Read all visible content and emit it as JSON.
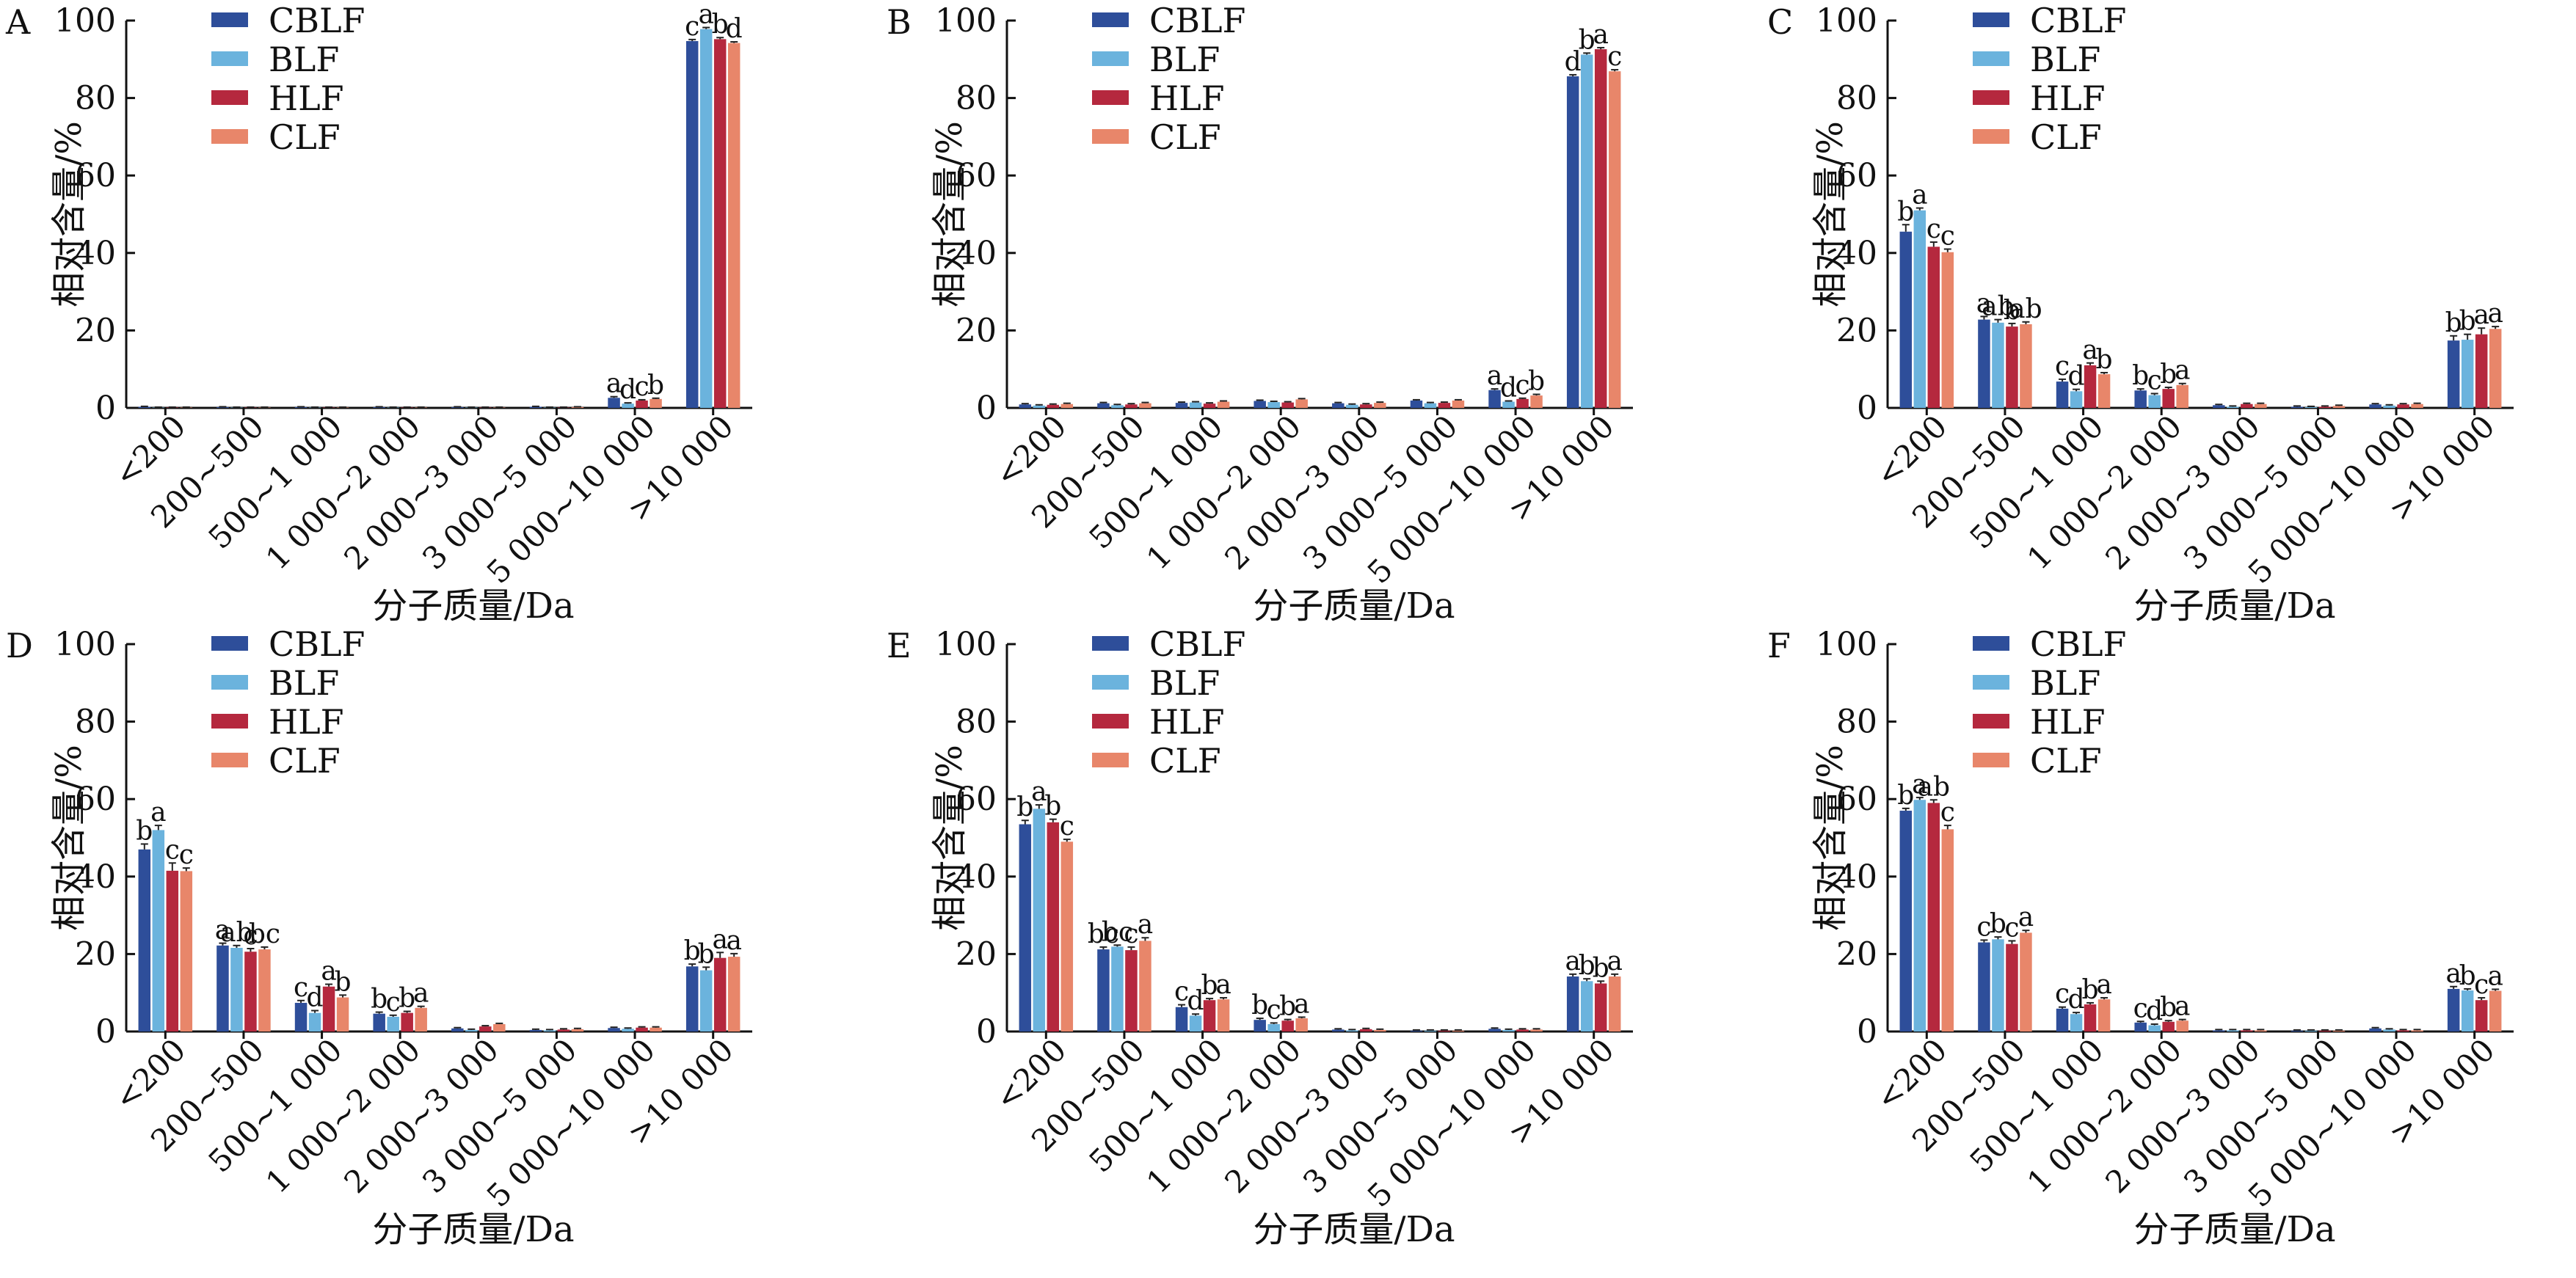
{
  "chart_data": [
    {
      "type": "bar",
      "panel": "A",
      "xlabel": "分子质量/Da",
      "ylabel": "相对含量/%",
      "ylim": [
        0,
        100
      ],
      "yticks": [
        0,
        20,
        40,
        60,
        80,
        100
      ],
      "categories": [
        "<200",
        "200~500",
        "500~1 000",
        "1 000~2 000",
        "2 000~3 000",
        "3 000~5 000",
        "5 000~10 000",
        ">10 000"
      ],
      "legend": "top-left",
      "colors": [
        "#2e4e9a",
        "#6bb3dd",
        "#b5283e",
        "#e8866a"
      ],
      "series": [
        {
          "name": "CBLF",
          "values": [
            0.3,
            0.2,
            0.2,
            0.2,
            0.2,
            0.3,
            2.6,
            94.7
          ],
          "errors": [
            0.1,
            0.1,
            0.1,
            0.1,
            0.1,
            0.1,
            0.3,
            0.4
          ],
          "labels": [
            "",
            "",
            "",
            "",
            "",
            "",
            "a",
            "c"
          ]
        },
        {
          "name": "BLF",
          "values": [
            0.1,
            0.1,
            0.1,
            0.1,
            0.1,
            0.1,
            1.1,
            97.8
          ],
          "errors": [
            0.1,
            0.1,
            0.1,
            0.1,
            0.1,
            0.1,
            0.2,
            0.4
          ],
          "labels": [
            "",
            "",
            "",
            "",
            "",
            "",
            "d",
            "a"
          ]
        },
        {
          "name": "HLF",
          "values": [
            0.1,
            0.1,
            0.1,
            0.1,
            0.1,
            0.1,
            1.9,
            95.2
          ],
          "errors": [
            0.1,
            0.1,
            0.1,
            0.1,
            0.1,
            0.1,
            0.2,
            0.4
          ],
          "labels": [
            "",
            "",
            "",
            "",
            "",
            "",
            "c",
            "b"
          ]
        },
        {
          "name": "CLF",
          "values": [
            0.1,
            0.1,
            0.1,
            0.1,
            0.1,
            0.2,
            2.3,
            94.2
          ],
          "errors": [
            0.1,
            0.1,
            0.1,
            0.1,
            0.1,
            0.1,
            0.2,
            0.3
          ],
          "labels": [
            "",
            "",
            "",
            "",
            "",
            "",
            "b",
            "d"
          ]
        }
      ]
    },
    {
      "type": "bar",
      "panel": "B",
      "xlabel": "分子质量/Da",
      "ylabel": "相对含量/%",
      "ylim": [
        0,
        100
      ],
      "yticks": [
        0,
        20,
        40,
        60,
        80,
        100
      ],
      "categories": [
        "<200",
        "200~500",
        "500~1 000",
        "1 000~2 000",
        "2 000~3 000",
        "3 000~5 000",
        "5 000~10 000",
        ">10 000"
      ],
      "legend": "top-left",
      "colors": [
        "#2e4e9a",
        "#6bb3dd",
        "#b5283e",
        "#e8866a"
      ],
      "series": [
        {
          "name": "CBLF",
          "values": [
            0.9,
            1.2,
            1.3,
            1.8,
            1.2,
            1.9,
            4.6,
            85.6
          ],
          "errors": [
            0.2,
            0.2,
            0.2,
            0.2,
            0.2,
            0.2,
            0.3,
            0.4
          ],
          "labels": [
            "",
            "",
            "",
            "",
            "",
            "",
            "a",
            "d"
          ]
        },
        {
          "name": "BLF",
          "values": [
            0.6,
            0.7,
            1.4,
            1.5,
            0.8,
            1.2,
            1.6,
            91.2
          ],
          "errors": [
            0.2,
            0.2,
            0.2,
            0.2,
            0.2,
            0.2,
            0.2,
            0.4
          ],
          "labels": [
            "",
            "",
            "",
            "",
            "",
            "",
            "d",
            "b"
          ]
        },
        {
          "name": "HLF",
          "values": [
            0.8,
            0.9,
            1.1,
            1.4,
            0.9,
            1.3,
            2.3,
            92.6
          ],
          "errors": [
            0.2,
            0.2,
            0.2,
            0.2,
            0.2,
            0.2,
            0.2,
            0.4
          ],
          "labels": [
            "",
            "",
            "",
            "",
            "",
            "",
            "c",
            "a"
          ]
        },
        {
          "name": "CLF",
          "values": [
            1.0,
            1.2,
            1.6,
            2.2,
            1.3,
            1.9,
            3.2,
            86.9
          ],
          "errors": [
            0.2,
            0.2,
            0.2,
            0.2,
            0.2,
            0.2,
            0.3,
            0.4
          ],
          "labels": [
            "",
            "",
            "",
            "",
            "",
            "",
            "b",
            "c"
          ]
        }
      ]
    },
    {
      "type": "bar",
      "panel": "C",
      "xlabel": "分子质量/Da",
      "ylabel": "相对含量/%",
      "ylim": [
        0,
        100
      ],
      "yticks": [
        0,
        20,
        40,
        60,
        80,
        100
      ],
      "categories": [
        "<200",
        "200~500",
        "500~1 000",
        "1 000~2 000",
        "2 000~3 000",
        "3 000~5 000",
        "5 000~10 000",
        ">10 000"
      ],
      "legend": "top-left",
      "colors": [
        "#2e4e9a",
        "#6bb3dd",
        "#b5283e",
        "#e8866a"
      ],
      "series": [
        {
          "name": "CBLF",
          "values": [
            45.5,
            22.8,
            6.8,
            4.5,
            0.7,
            0.3,
            0.9,
            17.4
          ],
          "errors": [
            1.8,
            0.8,
            0.6,
            0.4,
            0.2,
            0.2,
            0.2,
            1.2
          ],
          "labels": [
            "b",
            "a",
            "c",
            "b",
            "",
            "",
            "",
            "b"
          ]
        },
        {
          "name": "BLF",
          "values": [
            51.0,
            22.0,
            4.3,
            3.3,
            0.3,
            0.2,
            0.6,
            17.6
          ],
          "errors": [
            0.6,
            0.8,
            0.5,
            0.4,
            0.2,
            0.2,
            0.2,
            1.4
          ],
          "labels": [
            "a",
            "ab",
            "d",
            "c",
            "",
            "",
            "",
            "b"
          ]
        },
        {
          "name": "HLF",
          "values": [
            41.6,
            21.0,
            11.0,
            4.9,
            1.0,
            0.3,
            0.9,
            19.0
          ],
          "errors": [
            1.2,
            0.8,
            0.6,
            0.4,
            0.2,
            0.2,
            0.2,
            1.6
          ],
          "labels": [
            "c",
            "b",
            "a",
            "b",
            "",
            "",
            "",
            "a"
          ]
        },
        {
          "name": "CLF",
          "values": [
            40.2,
            21.6,
            8.7,
            5.9,
            1.0,
            0.5,
            1.0,
            20.4
          ],
          "errors": [
            0.8,
            0.6,
            0.4,
            0.4,
            0.2,
            0.2,
            0.2,
            0.6
          ],
          "labels": [
            "c",
            "ab",
            "b",
            "a",
            "",
            "",
            "",
            "a"
          ]
        }
      ]
    },
    {
      "type": "bar",
      "panel": "D",
      "xlabel": "分子质量/Da",
      "ylabel": "相对含量/%",
      "ylim": [
        0,
        100
      ],
      "yticks": [
        0,
        20,
        40,
        60,
        80,
        100
      ],
      "categories": [
        "<200",
        "200~500",
        "500~1 000",
        "1 000~2 000",
        "2 000~3 000",
        "3 000~5 000",
        "5 000~10 000",
        ">10 000"
      ],
      "legend": "top-left",
      "colors": [
        "#2e4e9a",
        "#6bb3dd",
        "#b5283e",
        "#e8866a"
      ],
      "series": [
        {
          "name": "CBLF",
          "values": [
            47.0,
            22.2,
            7.4,
            4.6,
            0.8,
            0.4,
            0.9,
            16.8
          ],
          "errors": [
            1.4,
            0.6,
            0.6,
            0.4,
            0.2,
            0.2,
            0.2,
            0.6
          ],
          "labels": [
            "b",
            "a",
            "c",
            "b",
            "",
            "",
            "",
            "b"
          ]
        },
        {
          "name": "BLF",
          "values": [
            52.0,
            21.6,
            4.8,
            3.8,
            0.4,
            0.3,
            0.7,
            15.8
          ],
          "errors": [
            1.2,
            0.6,
            0.6,
            0.4,
            0.2,
            0.2,
            0.2,
            0.8
          ],
          "labels": [
            "a",
            "ab",
            "d",
            "c",
            "",
            "",
            "",
            "b"
          ]
        },
        {
          "name": "HLF",
          "values": [
            41.5,
            20.6,
            11.6,
            4.8,
            1.3,
            0.5,
            1.0,
            19.0
          ],
          "errors": [
            2.0,
            0.8,
            0.6,
            0.4,
            0.2,
            0.2,
            0.2,
            1.4
          ],
          "labels": [
            "c",
            "c",
            "a",
            "b",
            "",
            "",
            "",
            "a"
          ]
        },
        {
          "name": "CLF",
          "values": [
            41.4,
            21.2,
            8.8,
            6.1,
            1.9,
            0.6,
            1.0,
            19.3
          ],
          "errors": [
            0.8,
            0.6,
            0.6,
            0.4,
            0.2,
            0.2,
            0.2,
            0.8
          ],
          "labels": [
            "c",
            "bc",
            "b",
            "a",
            "",
            "",
            "",
            "a"
          ]
        }
      ]
    },
    {
      "type": "bar",
      "panel": "E",
      "xlabel": "分子质量/Da",
      "ylabel": "相对含量/%",
      "ylim": [
        0,
        100
      ],
      "yticks": [
        0,
        20,
        40,
        60,
        80,
        100
      ],
      "categories": [
        "<200",
        "200~500",
        "500~1 000",
        "1 000~2 000",
        "2 000~3 000",
        "3 000~5 000",
        "5 000~10 000",
        ">10 000"
      ],
      "legend": "top-left",
      "colors": [
        "#2e4e9a",
        "#6bb3dd",
        "#b5283e",
        "#e8866a"
      ],
      "series": [
        {
          "name": "CBLF",
          "values": [
            53.5,
            21.2,
            6.3,
            3.0,
            0.5,
            0.2,
            0.7,
            14.2
          ],
          "errors": [
            1.0,
            0.6,
            0.6,
            0.4,
            0.2,
            0.2,
            0.2,
            0.6
          ],
          "labels": [
            "b",
            "bc",
            "c",
            "b",
            "",
            "",
            "",
            "a"
          ]
        },
        {
          "name": "BLF",
          "values": [
            57.5,
            21.9,
            4.1,
            1.9,
            0.3,
            0.2,
            0.4,
            13.0
          ],
          "errors": [
            1.0,
            0.4,
            0.4,
            0.3,
            0.2,
            0.2,
            0.2,
            0.6
          ],
          "labels": [
            "a",
            "bc",
            "d",
            "c",
            "",
            "",
            "",
            "b"
          ]
        },
        {
          "name": "HLF",
          "values": [
            54.0,
            21.0,
            8.1,
            2.8,
            0.6,
            0.2,
            0.5,
            12.4
          ],
          "errors": [
            0.8,
            0.8,
            0.4,
            0.3,
            0.2,
            0.2,
            0.2,
            0.6
          ],
          "labels": [
            "b",
            "c",
            "b",
            "b",
            "",
            "",
            "",
            "b"
          ]
        },
        {
          "name": "CLF",
          "values": [
            49.0,
            23.4,
            8.3,
            3.4,
            0.4,
            0.2,
            0.5,
            14.2
          ],
          "errors": [
            0.6,
            0.8,
            0.4,
            0.3,
            0.2,
            0.2,
            0.2,
            0.6
          ],
          "labels": [
            "c",
            "a",
            "a",
            "a",
            "",
            "",
            "",
            "a"
          ]
        }
      ]
    },
    {
      "type": "bar",
      "panel": "F",
      "xlabel": "分子质量/Da",
      "ylabel": "相对含量/%",
      "ylim": [
        0,
        100
      ],
      "yticks": [
        0,
        20,
        40,
        60,
        80,
        100
      ],
      "categories": [
        "<200",
        "200~500",
        "500~1 000",
        "1 000~2 000",
        "2 000~3 000",
        "3 000~5 000",
        "5 000~10 000",
        ">10 000"
      ],
      "legend": "top-left",
      "colors": [
        "#2e4e9a",
        "#6bb3dd",
        "#b5283e",
        "#e8866a"
      ],
      "series": [
        {
          "name": "CBLF",
          "values": [
            57.0,
            23.0,
            5.9,
            2.3,
            0.3,
            0.2,
            0.8,
            11.0
          ],
          "errors": [
            0.6,
            0.6,
            0.4,
            0.3,
            0.2,
            0.2,
            0.2,
            0.6
          ],
          "labels": [
            "b",
            "c",
            "c",
            "c",
            "",
            "",
            "",
            "a"
          ]
        },
        {
          "name": "BLF",
          "values": [
            59.8,
            23.8,
            4.5,
            1.6,
            0.3,
            0.2,
            0.5,
            10.6
          ],
          "errors": [
            0.6,
            0.6,
            0.4,
            0.3,
            0.2,
            0.2,
            0.2,
            0.4
          ],
          "labels": [
            "a",
            "b",
            "d",
            "d",
            "",
            "",
            "",
            "b"
          ]
        },
        {
          "name": "HLF",
          "values": [
            59.0,
            22.6,
            7.0,
            2.5,
            0.3,
            0.2,
            0.3,
            8.1
          ],
          "errors": [
            0.8,
            0.8,
            0.4,
            0.3,
            0.2,
            0.2,
            0.2,
            0.6
          ],
          "labels": [
            "ab",
            "c",
            "b",
            "b",
            "",
            "",
            "",
            "c"
          ]
        },
        {
          "name": "CLF",
          "values": [
            52.2,
            25.5,
            8.3,
            2.8,
            0.3,
            0.2,
            0.3,
            10.5
          ],
          "errors": [
            1.0,
            0.6,
            0.4,
            0.3,
            0.2,
            0.2,
            0.2,
            0.4
          ],
          "labels": [
            "c",
            "a",
            "a",
            "a",
            "",
            "",
            "",
            "a"
          ]
        }
      ]
    }
  ]
}
